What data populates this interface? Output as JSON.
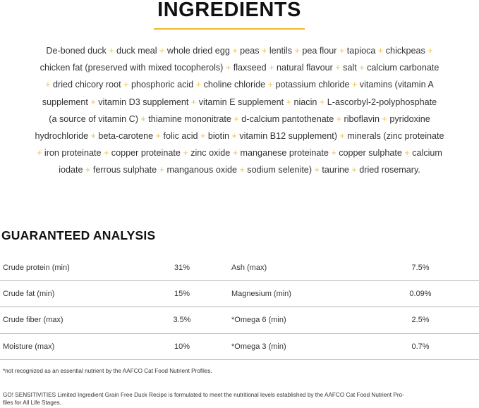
{
  "ingredients": {
    "title": "INGREDIENTS",
    "accent_color": "#f2c14e",
    "lines": [
      "De-boned duck + duck meal + whole dried egg + peas + lentils + pea flour + tapioca + chickpeas +",
      "chicken fat (preserved with mixed tocopherols) + flaxseed + natural flavour + salt + calcium carbonate",
      "+ dried chicory root + phosphoric acid + choline chloride + potassium chloride + vitamins (vitamin A",
      "supplement + vitamin D3 supplement + vitamin E supplement + niacin + L-ascorbyl-2-polyphosphate",
      "(a source of vitamin C) + thiamine mononitrate + d-calcium pantothenate + riboflavin + pyridoxine",
      "hydrochloride + beta-carotene + folic acid + biotin + vitamin B12 supplement) + minerals (zinc proteinate",
      "+ iron proteinate + copper proteinate + zinc oxide + manganese proteinate + copper sulphate + calcium",
      "iodate + ferrous sulphate + manganous oxide + sodium selenite) + taurine + dried rosemary."
    ]
  },
  "analysis": {
    "title": "GUARANTEED ANALYSIS",
    "rows": [
      {
        "label1": "Crude protein (min)",
        "value1": "31%",
        "label2": "Ash (max)",
        "value2": "7.5%"
      },
      {
        "label1": "Crude fat (min)",
        "value1": "15%",
        "label2": "Magnesium (min)",
        "value2": "0.09%"
      },
      {
        "label1": "Crude fiber (max)",
        "value1": "3.5%",
        "label2": "*Omega 6 (min)",
        "value2": "2.5%"
      },
      {
        "label1": "Moisture (max)",
        "value1": "10%",
        "label2": "*Omega 3 (min)",
        "value2": "0.7%"
      }
    ],
    "footnote": "*not recognized as an essential nutrient by the AAFCO Cat Food Nutrient Profiles.",
    "statement_line1": "GO! SENSITIVITIES Limited Ingredient Grain Free Duck Recipe is formulated to meet the nutritional levels established by the AAFCO Cat Food Nutrient Pro-",
    "statement_line2": "files for All Life Stages."
  }
}
